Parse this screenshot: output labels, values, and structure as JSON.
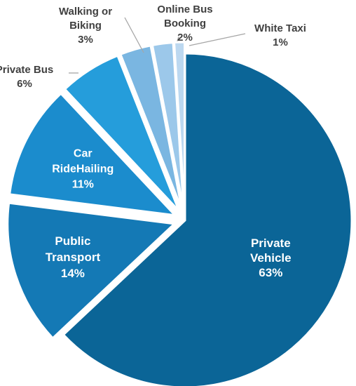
{
  "chart_data": {
    "type": "pie",
    "title": "",
    "start_angle_deg": 0,
    "direction": "clockwise",
    "slices": [
      {
        "label_lines": [
          "Private",
          "Vehicle"
        ],
        "value": 63,
        "value_label": "63%",
        "color": "#0b6597"
      },
      {
        "label_lines": [
          "Public",
          "Transport"
        ],
        "value": 14,
        "value_label": "14%",
        "color": "#1479b5"
      },
      {
        "label_lines": [
          "Car",
          "RideHailing"
        ],
        "value": 11,
        "value_label": "11%",
        "color": "#1b8ccd"
      },
      {
        "label_lines": [
          "Private Bus"
        ],
        "value": 6,
        "value_label": "6%",
        "color": "#259ddb"
      },
      {
        "label_lines": [
          "Walking or",
          "Biking"
        ],
        "value": 3,
        "value_label": "3%",
        "color": "#7ab6e1"
      },
      {
        "label_lines": [
          "Online Bus",
          "Booking"
        ],
        "value": 2,
        "value_label": "2%",
        "color": "#9cc8ea"
      },
      {
        "label_lines": [
          "White Taxi"
        ],
        "value": 1,
        "value_label": "1%",
        "color": "#bcd8f0"
      }
    ]
  }
}
